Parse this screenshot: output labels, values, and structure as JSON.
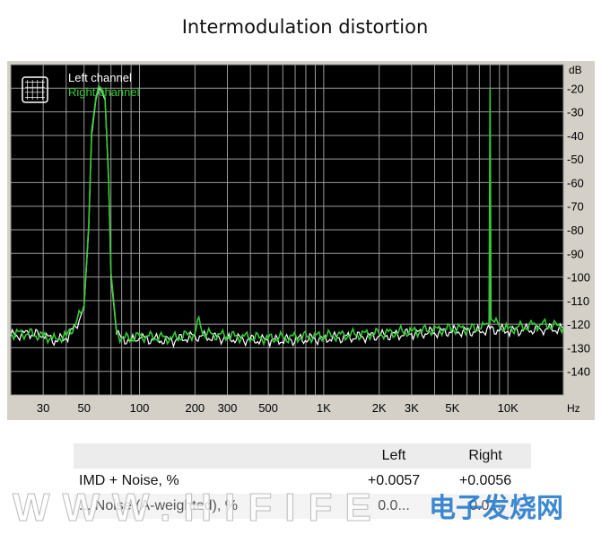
{
  "chart_data": {
    "type": "line",
    "title": "Intermodulation distortion",
    "x_scale": "log",
    "xlim": [
      20,
      20000
    ],
    "ylim": [
      -150,
      -10
    ],
    "x_unit": "Hz",
    "y_unit": "dB",
    "x_ticks": [
      {
        "value": 30,
        "label": "30"
      },
      {
        "value": 50,
        "label": "50"
      },
      {
        "value": 100,
        "label": "100"
      },
      {
        "value": 200,
        "label": "200"
      },
      {
        "value": 300,
        "label": "300"
      },
      {
        "value": 500,
        "label": "500"
      },
      {
        "value": 1000,
        "label": "1K"
      },
      {
        "value": 2000,
        "label": "2K"
      },
      {
        "value": 3000,
        "label": "3K"
      },
      {
        "value": 5000,
        "label": "5K"
      },
      {
        "value": 10000,
        "label": "10K"
      }
    ],
    "y_ticks": [
      -20,
      -30,
      -40,
      -50,
      -60,
      -70,
      -80,
      -90,
      -100,
      -110,
      -120,
      -130,
      -140
    ],
    "grid": true,
    "legend_position": "top-left",
    "series": [
      {
        "name": "Left channel",
        "color": "#ffffff",
        "x": [
          20,
          25,
          30,
          35,
          40,
          45,
          50,
          53,
          55,
          58,
          60,
          62,
          65,
          68,
          70,
          75,
          80,
          90,
          100,
          150,
          200,
          300,
          500,
          1000,
          2000,
          3000,
          5000,
          7000,
          8000,
          10000,
          15000,
          20000
        ],
        "y": [
          -125,
          -124,
          -125,
          -127,
          -126,
          -121,
          -113,
          -80,
          -40,
          -25,
          -20,
          -21,
          -25,
          -60,
          -100,
          -124,
          -126,
          -127,
          -126,
          -127,
          -125,
          -126,
          -127,
          -126,
          -125,
          -124,
          -123,
          -123,
          -122,
          -123,
          -122,
          -122
        ]
      },
      {
        "name": "Right channel",
        "color": "#33cc33",
        "x": [
          20,
          25,
          30,
          35,
          40,
          45,
          50,
          53,
          55,
          58,
          60,
          62,
          65,
          68,
          70,
          75,
          80,
          90,
          100,
          150,
          200,
          210,
          220,
          300,
          500,
          1000,
          2000,
          3000,
          5000,
          7000,
          7900,
          8000,
          8100,
          9000,
          10000,
          15000,
          20000
        ],
        "y": [
          -124,
          -124,
          -125,
          -126,
          -125,
          -120,
          -112,
          -78,
          -38,
          -24,
          -19,
          -20,
          -24,
          -58,
          -98,
          -123,
          -126,
          -126,
          -125,
          -126,
          -124,
          -117,
          -124,
          -125,
          -126,
          -125,
          -124,
          -123,
          -122,
          -122,
          -120,
          -20,
          -118,
          -121,
          -122,
          -120,
          -121
        ]
      }
    ]
  },
  "table": {
    "headers": [
      "",
      "Left",
      "Right"
    ],
    "rows": [
      {
        "label": "IMD + Noise, %",
        "left": "+0.0057",
        "right": "+0.0056"
      },
      {
        "label": "... Noise (A-weighted), %",
        "left": "0.0...",
        "right": "0.0..."
      }
    ]
  },
  "watermark": {
    "text": "WWW.HIFIFE",
    "logo_text": "电子发烧网",
    "logo_colors": [
      "#1a73c9",
      "#d62b2b"
    ]
  }
}
